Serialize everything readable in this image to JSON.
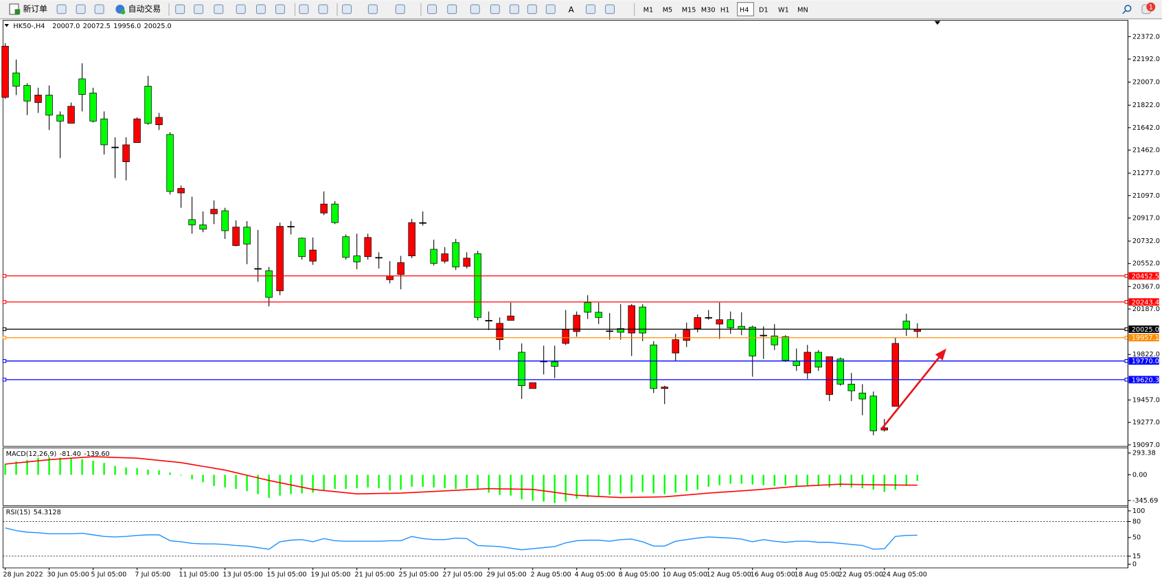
{
  "toolbar": {
    "new_order": "新订单",
    "auto_trading": "自动交易",
    "text_tool": "A",
    "timeframes": [
      "M1",
      "M5",
      "M15",
      "M30",
      "H1",
      "H4",
      "D1",
      "W1",
      "MN"
    ],
    "active_timeframe": "H4",
    "notifications": 1
  },
  "chart_data": [
    {
      "type": "candlestick",
      "title": "HK50-,H4",
      "last_labels": [
        "20007.0",
        "20072.5",
        "19956.0",
        "20025.0"
      ],
      "categories": [
        "28 Jun 2022",
        null,
        null,
        null,
        "30 Jun 05:00",
        null,
        null,
        null,
        "5 Jul 05:00",
        null,
        null,
        null,
        "7 Jul 05:00",
        null,
        null,
        null,
        "11 Jul 05:00",
        null,
        null,
        null,
        "13 Jul 05:00",
        null,
        null,
        null,
        "15 Jul 05:00",
        null,
        null,
        null,
        "19 Jul 05:00",
        null,
        null,
        null,
        "21 Jul 05:00",
        null,
        null,
        null,
        "25 Jul 05:00",
        null,
        null,
        null,
        "27 Jul 05:00",
        null,
        null,
        null,
        "29 Jul 05:00",
        null,
        null,
        null,
        "2 Aug 05:00",
        null,
        null,
        null,
        "4 Aug 05:00",
        null,
        null,
        null,
        "8 Aug 05:00",
        null,
        null,
        null,
        "10 Aug 05:00",
        null,
        null,
        null,
        "12 Aug 05:00",
        null,
        null,
        null,
        "16 Aug 05:00",
        null,
        null,
        null,
        "18 Aug 05:00",
        null,
        null,
        null,
        "22 Aug 05:00",
        null,
        null,
        null,
        "24 Aug 05:00",
        null,
        null,
        null
      ],
      "open": [
        21885,
        22081,
        21980,
        21843,
        21903,
        21742,
        21677,
        22033,
        21920,
        21712,
        21486,
        21368,
        21522,
        21974,
        21665,
        21587,
        21118,
        20904,
        20862,
        20951,
        20975,
        20696,
        20844,
        20512,
        20494,
        20333,
        20850,
        20755,
        20571,
        20957,
        21029,
        20767,
        20613,
        20607,
        20601,
        20422,
        20464,
        20613,
        20880,
        20666,
        20571,
        20720,
        20529,
        20630,
        20096,
        19941,
        20096,
        19840,
        19549,
        19769,
        19763,
        19911,
        20006,
        20238,
        20161,
        20012,
        20030,
        19994,
        20203,
        19899,
        19549,
        19834,
        19935,
        20030,
        20119,
        20066,
        20101,
        20048,
        20042,
        19977,
        19971,
        19965,
        19769,
        19674,
        19840,
        19501,
        19786,
        19584,
        19513,
        19489,
        19216,
        19406,
        20090,
        20007
      ],
      "high": [
        22319,
        22188,
        21998,
        21962,
        21980,
        21772,
        21843,
        22158,
        21962,
        21772,
        21564,
        21564,
        21724,
        22057,
        21760,
        21605,
        21177,
        21088,
        20969,
        21058,
        20999,
        20898,
        20892,
        20821,
        20524,
        20880,
        20892,
        20761,
        20761,
        21130,
        21053,
        20785,
        20791,
        20791,
        20642,
        20571,
        20613,
        20910,
        20969,
        20743,
        20684,
        20749,
        20642,
        20654,
        20167,
        20119,
        20238,
        19911,
        19596,
        19893,
        19893,
        20179,
        20167,
        20298,
        20238,
        20155,
        20226,
        20226,
        20226,
        19929,
        19572,
        19988,
        20078,
        20143,
        20179,
        20238,
        20167,
        20161,
        20054,
        20048,
        20066,
        19977,
        19870,
        19899,
        19858,
        19804,
        19798,
        19674,
        19584,
        19525,
        19305,
        19959,
        20149,
        20072.5
      ],
      "low": [
        21873,
        21903,
        21742,
        21760,
        21623,
        21397,
        21677,
        21772,
        21683,
        21427,
        21237,
        21219,
        21522,
        21665,
        21623,
        21106,
        20999,
        20791,
        20803,
        20868,
        20749,
        20690,
        20547,
        20405,
        20208,
        20298,
        20785,
        20583,
        20541,
        20940,
        20868,
        20583,
        20506,
        20583,
        20512,
        20393,
        20345,
        20595,
        20856,
        20535,
        20553,
        20500,
        20512,
        20096,
        20018,
        19858,
        20096,
        19465,
        19549,
        19662,
        19632,
        19899,
        19965,
        20107,
        20066,
        19941,
        19941,
        19810,
        19929,
        19513,
        19424,
        19769,
        19882,
        20000,
        20101,
        19947,
        19988,
        19977,
        19644,
        19786,
        19858,
        19763,
        19691,
        19626,
        19691,
        19448,
        19572,
        19448,
        19335,
        19174,
        19204,
        19406,
        19971,
        19956
      ],
      "close": [
        22295,
        21974,
        21855,
        21903,
        21742,
        21694,
        21813,
        21908,
        21694,
        21504,
        21486,
        21504,
        21712,
        21677,
        21724,
        21130,
        21154,
        20862,
        20827,
        20987,
        20815,
        20844,
        20708,
        20512,
        20280,
        20850,
        20850,
        20607,
        20660,
        21029,
        20880,
        20601,
        20565,
        20761,
        20601,
        20452,
        20559,
        20880,
        20880,
        20553,
        20630,
        20524,
        20595,
        20119,
        20096,
        20072,
        20131,
        19572,
        19596,
        19769,
        19727,
        20024,
        20137,
        20161,
        20119,
        20012,
        20000,
        20214,
        19994,
        19549,
        19561,
        19941,
        20018,
        20119,
        20119,
        20101,
        20036,
        20024,
        19810,
        19977,
        19899,
        19775,
        19733,
        19840,
        19721,
        19804,
        19584,
        19531,
        19465,
        19210,
        19234,
        19911,
        20024,
        20025
      ],
      "up_color": "#ff0000",
      "down_color": "#00ff00",
      "ylim": [
        19085,
        22503
      ],
      "yticks": [
        {
          "value": 22372,
          "label": "22372.0"
        },
        {
          "value": 22192,
          "label": "22192.0"
        },
        {
          "value": 22007,
          "label": "22007.0"
        },
        {
          "value": 21822,
          "label": "21822.0"
        },
        {
          "value": 21642,
          "label": "21642.0"
        },
        {
          "value": 21462,
          "label": "21462.0"
        },
        {
          "value": 21277,
          "label": "21277.0"
        },
        {
          "value": 21097,
          "label": "21097.0"
        },
        {
          "value": 20917,
          "label": "20917.0"
        },
        {
          "value": 20732,
          "label": "20732.0"
        },
        {
          "value": 20552,
          "label": "20552.0"
        },
        {
          "value": 20367,
          "label": "20367.0"
        },
        {
          "value": 20187,
          "label": "20187.0"
        },
        {
          "value": 19822,
          "label": "19822.0"
        },
        {
          "value": 19457,
          "label": "19457.0"
        },
        {
          "value": 19277,
          "label": "19277.0"
        },
        {
          "value": 19097,
          "label": "19097.0"
        }
      ],
      "levels": [
        {
          "value": 20452.5,
          "color": "#ff0000"
        },
        {
          "value": 20243.4,
          "color": "#ff0000"
        },
        {
          "value": 20025,
          "label": "20025.0",
          "color": "#000000"
        },
        {
          "value": 19957.1,
          "color": "#ff8c00"
        },
        {
          "value": 19770,
          "label": "19770.0",
          "color": "#0000ff"
        },
        {
          "value": 19620.3,
          "color": "#0000ff"
        }
      ]
    },
    {
      "type": "macd",
      "title": "MACD(12,26,9)",
      "title_values": [
        {
          "value": -81.4,
          "label": "-81.40"
        },
        {
          "value": -139.6,
          "label": "-139.60"
        }
      ],
      "values": [
        150,
        180,
        200,
        230,
        240,
        230,
        220,
        210,
        190,
        160,
        120,
        100,
        90,
        70,
        60,
        30,
        -10,
        -60,
        -100,
        -150,
        -170,
        -190,
        -220,
        -260,
        -310,
        -280,
        -260,
        -250,
        -240,
        -210,
        -190,
        -190,
        -180,
        -170,
        -180,
        -210,
        -200,
        -160,
        -160,
        -170,
        -180,
        -190,
        -180,
        -200,
        -240,
        -270,
        -280,
        -330,
        -350,
        -360,
        -380,
        -360,
        -320,
        -300,
        -280,
        -270,
        -250,
        -240,
        -230,
        -250,
        -260,
        -240,
        -220,
        -200,
        -160,
        -140,
        -120,
        -120,
        -130,
        -140,
        -150,
        -140,
        -150,
        -150,
        -150,
        -170,
        -160,
        -170,
        -180,
        -200,
        -230,
        -200,
        -150,
        -81.4
      ],
      "signal": [
        144,
        159,
        174,
        189,
        204,
        214,
        224,
        234,
        244,
        239,
        234,
        229,
        224,
        209,
        194,
        179,
        164,
        139,
        114,
        89,
        64,
        29,
        -6,
        -41,
        -76,
        -106,
        -136,
        -166,
        -196,
        -211,
        -226,
        -241,
        -256,
        -254,
        -251,
        -249,
        -246,
        -239,
        -231,
        -224,
        -216,
        -209,
        -201,
        -194,
        -186,
        -189,
        -191,
        -194,
        -196,
        -216,
        -236,
        -256,
        -276,
        -284,
        -291,
        -299,
        -306,
        -304,
        -301,
        -299,
        -296,
        -284,
        -271,
        -259,
        -246,
        -236,
        -226,
        -216,
        -206,
        -194,
        -181,
        -169,
        -156,
        -149,
        -141,
        -134,
        -126,
        -129,
        -131,
        -134,
        -136,
        -137,
        -138,
        -139.6
      ],
      "color": "#00ff00",
      "signal_color": "#ff0000",
      "ylim": [
        -415,
        363
      ],
      "yticks": [
        {
          "value": 293.38,
          "label": "293.38"
        },
        {
          "value": 0,
          "label": "0.00"
        },
        {
          "value": -345.69,
          "label": "-345.69"
        }
      ]
    },
    {
      "type": "rsi",
      "title": "RSI(15)",
      "title_value": 54.3128,
      "values": [
        68,
        63,
        60,
        59,
        57,
        57,
        57,
        58,
        55,
        52,
        51,
        52,
        54,
        55,
        55,
        44,
        42,
        39,
        38,
        38,
        37,
        35,
        34,
        31,
        28,
        42,
        45,
        46,
        42,
        48,
        44,
        43,
        43,
        43,
        43,
        44,
        44,
        52,
        48,
        46,
        46,
        49,
        48,
        35,
        34,
        33,
        30,
        27,
        29,
        31,
        33,
        40,
        44,
        45,
        45,
        43,
        46,
        47,
        42,
        34,
        34,
        43,
        46,
        49,
        51,
        50,
        49,
        47,
        42,
        46,
        43,
        41,
        43,
        43,
        41,
        41,
        39,
        37,
        35,
        28,
        29,
        52,
        54,
        54.3128
      ],
      "color": "#1e90ff",
      "ylim": [
        -7,
        107
      ],
      "yticks": [
        100,
        80,
        50,
        15,
        0
      ],
      "levels": [
        80,
        15
      ]
    }
  ]
}
